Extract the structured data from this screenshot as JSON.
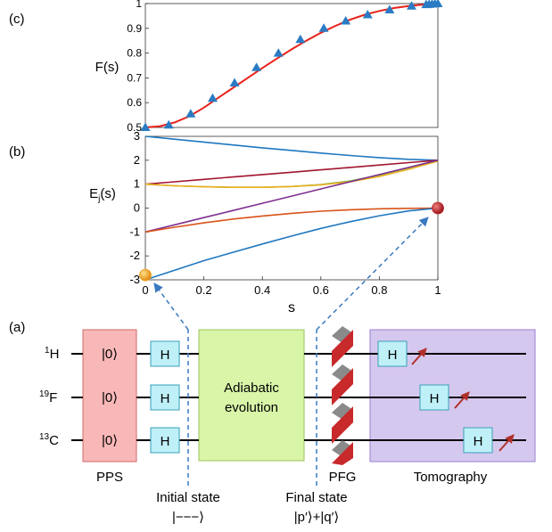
{
  "panels": {
    "c_label": "(c)",
    "b_label": "(b)",
    "a_label": "(a)"
  },
  "chart_data": [
    {
      "type": "line",
      "panel": "(c)",
      "ylabel": "F(s)",
      "xlim": [
        0,
        1
      ],
      "ylim": [
        0.5,
        1
      ],
      "yticks": [
        "0.5",
        "0.6",
        "0.7",
        "0.8",
        "0.9",
        "1"
      ],
      "yticks_num": [
        0.5,
        0.6,
        0.7,
        0.8,
        0.9,
        1.0
      ],
      "line_color": "#e8221b",
      "marker_color": "#2a7bc4",
      "curve": {
        "x": [
          0,
          0.05,
          0.1,
          0.15,
          0.2,
          0.25,
          0.3,
          0.35,
          0.4,
          0.45,
          0.5,
          0.55,
          0.6,
          0.65,
          0.7,
          0.75,
          0.8,
          0.85,
          0.9,
          0.95,
          1.0
        ],
        "y": [
          0.5,
          0.505,
          0.52,
          0.545,
          0.58,
          0.62,
          0.66,
          0.7,
          0.74,
          0.778,
          0.815,
          0.85,
          0.882,
          0.91,
          0.935,
          0.955,
          0.97,
          0.982,
          0.99,
          0.996,
          1.0
        ]
      },
      "markers": {
        "x": [
          0,
          0.08,
          0.155,
          0.23,
          0.305,
          0.38,
          0.455,
          0.53,
          0.61,
          0.685,
          0.76,
          0.835,
          0.91,
          0.96,
          0.97,
          0.98,
          0.99,
          1.0
        ],
        "y": [
          0.5,
          0.51,
          0.555,
          0.618,
          0.68,
          0.742,
          0.8,
          0.855,
          0.9,
          0.93,
          0.955,
          0.975,
          0.99,
          0.996,
          0.997,
          0.998,
          0.999,
          1.0
        ]
      }
    },
    {
      "type": "line",
      "panel": "(b)",
      "ylabel_main": "E",
      "ylabel_sub": "j",
      "ylabel_tail": "(s)",
      "xlabel": "s",
      "xlim": [
        0,
        1
      ],
      "ylim": [
        -3,
        3
      ],
      "xticks": [
        "0",
        "0.2",
        "0.4",
        "0.6",
        "0.8",
        "1"
      ],
      "xticks_num": [
        0,
        0.2,
        0.4,
        0.6,
        0.8,
        1.0
      ],
      "yticks": [
        "-3",
        "-2",
        "-1",
        "0",
        "1",
        "2",
        "3"
      ],
      "yticks_num": [
        -3,
        -2,
        -1,
        0,
        1,
        2,
        3
      ],
      "series": [
        {
          "color": "#1f77c0",
          "x": [
            0,
            0.1,
            0.2,
            0.3,
            0.4,
            0.5,
            0.6,
            0.7,
            0.8,
            0.9,
            1.0
          ],
          "y": [
            3.0,
            2.88,
            2.76,
            2.64,
            2.52,
            2.41,
            2.3,
            2.2,
            2.11,
            2.04,
            2.0
          ]
        },
        {
          "color": "#a2142f",
          "x": [
            0,
            0.1,
            0.2,
            0.3,
            0.4,
            0.5,
            0.6,
            0.7,
            0.8,
            0.9,
            1.0
          ],
          "y": [
            1.0,
            1.1,
            1.2,
            1.3,
            1.4,
            1.5,
            1.6,
            1.7,
            1.8,
            1.9,
            2.0
          ]
        },
        {
          "color": "#77ac30",
          "x": [
            0,
            0.1,
            0.2,
            0.3,
            0.4,
            0.5,
            0.6,
            0.7,
            0.8,
            0.9,
            1.0
          ],
          "y": [
            1.0,
            0.93,
            0.89,
            0.87,
            0.87,
            0.9,
            0.98,
            1.13,
            1.38,
            1.68,
            2.0
          ]
        },
        {
          "color": "#edb120",
          "x": [
            0,
            0.1,
            0.2,
            0.3,
            0.4,
            0.5,
            0.6,
            0.7,
            0.8,
            0.9,
            1.0
          ],
          "y": [
            1.0,
            0.93,
            0.89,
            0.87,
            0.87,
            0.9,
            0.97,
            1.1,
            1.32,
            1.62,
            1.96
          ]
        },
        {
          "color": "#7e2f8e",
          "x": [
            0,
            0.1,
            0.2,
            0.3,
            0.4,
            0.5,
            0.6,
            0.7,
            0.8,
            0.9,
            1.0
          ],
          "y": [
            -1.0,
            -0.7,
            -0.4,
            -0.1,
            0.2,
            0.5,
            0.8,
            1.1,
            1.4,
            1.7,
            2.0
          ]
        },
        {
          "color": "#d95319",
          "x": [
            0,
            0.1,
            0.2,
            0.3,
            0.4,
            0.5,
            0.6,
            0.7,
            0.8,
            0.9,
            1.0
          ],
          "y": [
            -1.0,
            -0.8,
            -0.62,
            -0.46,
            -0.33,
            -0.22,
            -0.13,
            -0.07,
            -0.03,
            -0.01,
            0.0
          ]
        },
        {
          "color": "#1f77c0",
          "x": [
            0,
            0.1,
            0.2,
            0.3,
            0.4,
            0.5,
            0.6,
            0.7,
            0.8,
            0.9,
            1.0
          ],
          "y": [
            -3.0,
            -2.6,
            -2.2,
            -1.85,
            -1.5,
            -1.17,
            -0.85,
            -0.57,
            -0.32,
            -0.12,
            0.0
          ]
        }
      ],
      "points": [
        {
          "x": 0,
          "y": -2.8,
          "color": "#f0a020"
        },
        {
          "x": 1,
          "y": 0.0,
          "color": "#c0282a"
        }
      ]
    }
  ],
  "circuit": {
    "qubits": [
      {
        "sup": "1",
        "sym": "H"
      },
      {
        "sup": "19",
        "sym": "F"
      },
      {
        "sup": "13",
        "sym": "C"
      }
    ],
    "pps_state": "|0⟩",
    "pps_label": "PPS",
    "h_gate": "H",
    "adiabatic_line1": "Adiabatic",
    "adiabatic_line2": "evolution",
    "pfg_label": "PFG",
    "tomography_label": "Tomography",
    "initial_state_label": "Initial state",
    "initial_state_value": "|−−−⟩",
    "final_state_label": "Final state",
    "final_state_value": "|p′⟩+|q′⟩",
    "colors": {
      "pps_fill": "#f9b8b8",
      "pps_stroke": "#d06a6a",
      "h_fill": "#bff0f8",
      "h_stroke": "#3a9fb8",
      "adiabatic_fill": "#d9f5a8",
      "adiabatic_stroke": "#9ac45a",
      "tomo_fill": "#d5c8ee",
      "tomo_stroke": "#9a7fd0",
      "pfg_red": "#c8292b",
      "pfg_grey": "#8a8a8a",
      "meter": "#b0302a",
      "arrow_dash": "#3a78c0"
    }
  }
}
